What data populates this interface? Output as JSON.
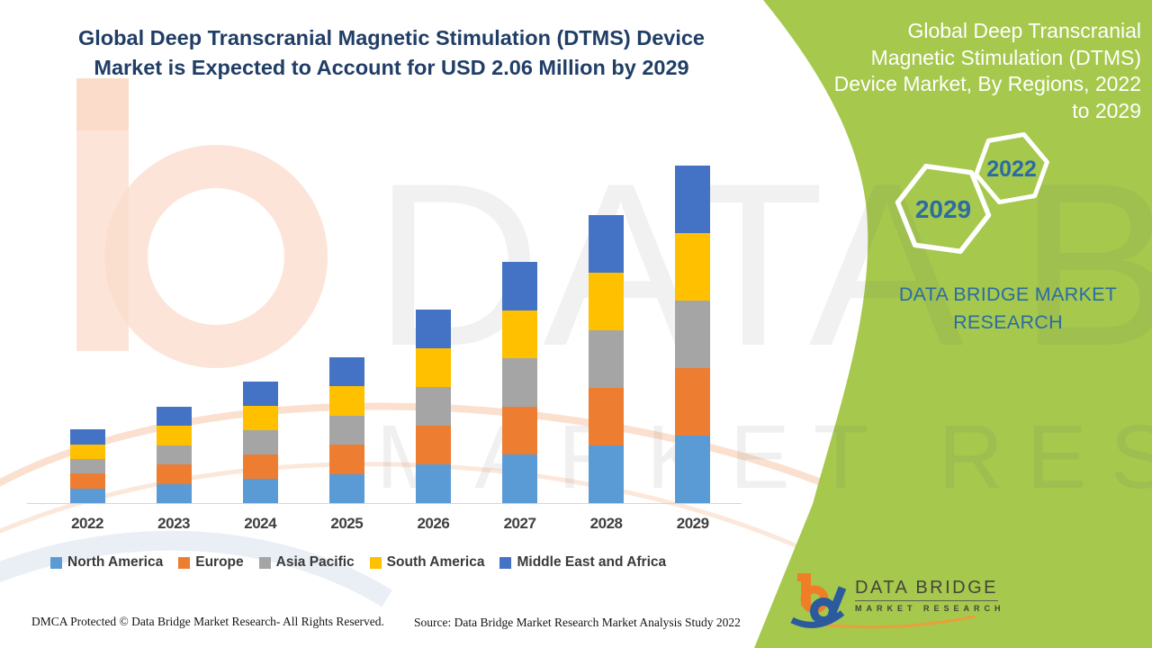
{
  "header": {
    "title_line1": "Global Deep Transcranial Magnetic Stimulation (DTMS) Device",
    "title_line2": "Market is Expected to Account for USD 2.06 Million by 2029"
  },
  "panel": {
    "background_color": "#a5c84d",
    "heading_lines": [
      "Global Deep Transcranial",
      "Magnetic Stimulation (DTMS)",
      "Device Market, By Regions, 2022",
      "to 2029"
    ],
    "hexagon_small_label": "2022",
    "hexagon_large_label": "2029",
    "caption_line1": "DATA BRIDGE MARKET",
    "caption_line2": "RESEARCH",
    "accent_text_color": "#2b6ca3"
  },
  "chart_data": {
    "type": "bar",
    "stacked": true,
    "title": "Global Deep Transcranial Magnetic Stimulation (DTMS) Device Market, By Regions, 2022 to 2029",
    "unit": "USD Million",
    "stated_value_label": "USD 2.06 Million by 2029",
    "categories": [
      "2022",
      "2023",
      "2024",
      "2025",
      "2026",
      "2027",
      "2028",
      "2029"
    ],
    "totals": [
      0.45,
      0.59,
      0.74,
      0.89,
      1.18,
      1.47,
      1.76,
      2.06
    ],
    "values_estimated": true,
    "series": [
      {
        "name": "North America",
        "color": "#5B9BD5",
        "values": [
          0.09,
          0.118,
          0.148,
          0.178,
          0.236,
          0.294,
          0.352,
          0.412
        ]
      },
      {
        "name": "Europe",
        "color": "#ED7D31",
        "values": [
          0.09,
          0.118,
          0.148,
          0.178,
          0.236,
          0.294,
          0.352,
          0.412
        ]
      },
      {
        "name": "Asia Pacific",
        "color": "#A5A5A5",
        "values": [
          0.09,
          0.118,
          0.148,
          0.178,
          0.236,
          0.294,
          0.352,
          0.412
        ]
      },
      {
        "name": "South America",
        "color": "#FFC000",
        "values": [
          0.09,
          0.118,
          0.148,
          0.178,
          0.236,
          0.294,
          0.352,
          0.412
        ]
      },
      {
        "name": "Middle East and Africa",
        "color": "#4472C4",
        "values": [
          0.09,
          0.118,
          0.148,
          0.178,
          0.236,
          0.294,
          0.352,
          0.412
        ]
      }
    ],
    "xlabel": "",
    "ylabel": "",
    "y_axis_visible": false,
    "gridlines": false,
    "legend_position": "bottom"
  },
  "watermark": {
    "big_text": "DATA BRIDGE",
    "sub_text": "MARKET RESEARCH"
  },
  "logo": {
    "title": "DATA BRIDGE",
    "subtitle": "MARKET  RESEARCH"
  },
  "footer": {
    "dmca": "DMCA Protected © Data Bridge Market Research- All Rights Reserved.",
    "source": "Source: Data Bridge Market Research Market Analysis Study 2022"
  }
}
